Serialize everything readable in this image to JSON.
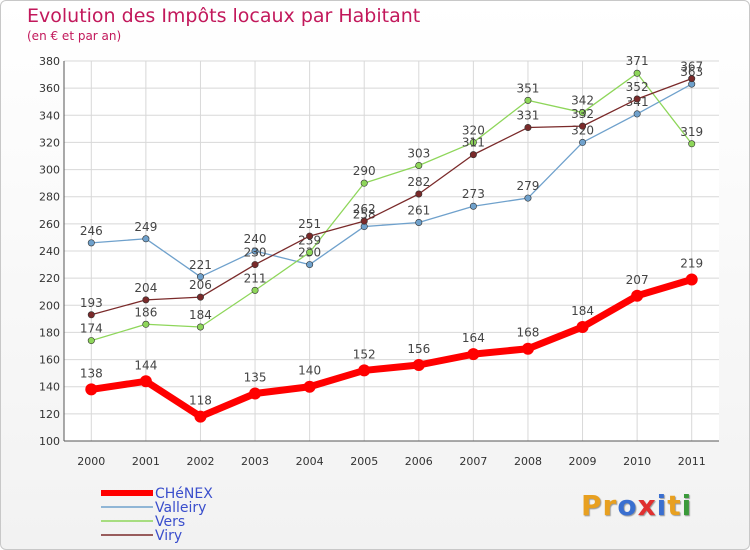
{
  "chart_data": {
    "type": "line",
    "title": "Evolution des Impôts locaux par Habitant",
    "subtitle": "(en € et par an)",
    "categories": [
      "2000",
      "2001",
      "2002",
      "2003",
      "2004",
      "2005",
      "2006",
      "2007",
      "2008",
      "2009",
      "2010",
      "2011"
    ],
    "ylim": [
      100,
      380
    ],
    "yticks": [
      100,
      120,
      140,
      160,
      180,
      200,
      220,
      240,
      260,
      280,
      300,
      320,
      340,
      360,
      380
    ],
    "grid": true,
    "legend_position": "bottom-left",
    "series": [
      {
        "name": "CHéNEX",
        "color": "#ff0000",
        "values": [
          138,
          144,
          118,
          135,
          140,
          152,
          156,
          164,
          168,
          184,
          207,
          219
        ]
      },
      {
        "name": "Valleiry",
        "color": "#6fa1cc",
        "values": [
          246,
          249,
          221,
          240,
          230,
          258,
          261,
          273,
          279,
          320,
          341,
          363
        ]
      },
      {
        "name": "Vers",
        "color": "#8ed65a",
        "values": [
          174,
          186,
          184,
          211,
          239,
          290,
          303,
          320,
          351,
          342,
          371,
          319
        ]
      },
      {
        "name": "Viry",
        "color": "#7a2a2a",
        "values": [
          193,
          204,
          206,
          230,
          251,
          262,
          282,
          311,
          331,
          332,
          352,
          367
        ]
      }
    ]
  },
  "logo": {
    "text": "Proxiti",
    "letters": [
      "P",
      "r",
      "o",
      "x",
      "i",
      "t",
      "i"
    ],
    "colors": [
      "#e8a020",
      "#e8a020",
      "#3a6fd0",
      "#e03030",
      "#3a6fd0",
      "#e8a020",
      "#3a9a3a"
    ]
  }
}
